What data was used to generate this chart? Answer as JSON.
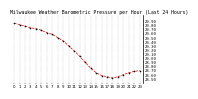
{
  "title": "Milwaukee Weather Barometric Pressure per Hour (Last 24 Hours)",
  "x_hours": [
    0,
    1,
    2,
    3,
    4,
    5,
    6,
    7,
    8,
    9,
    10,
    11,
    12,
    13,
    14,
    15,
    16,
    17,
    18,
    19,
    20,
    21,
    22,
    23
  ],
  "pressure": [
    29.85,
    29.82,
    29.78,
    29.74,
    29.72,
    29.68,
    29.62,
    29.58,
    29.5,
    29.42,
    29.3,
    29.18,
    29.05,
    28.9,
    28.76,
    28.65,
    28.58,
    28.55,
    28.52,
    28.55,
    28.6,
    28.65,
    28.68,
    28.7
  ],
  "line_color": "#cc0000",
  "marker_color": "#111111",
  "bg_color": "#ffffff",
  "grid_color": "#999999",
  "title_fontsize": 3.5,
  "tick_fontsize": 2.8,
  "ylim": [
    28.4,
    30.05
  ],
  "ytick_values": [
    28.5,
    28.6,
    28.7,
    28.8,
    28.9,
    29.0,
    29.1,
    29.2,
    29.3,
    29.4,
    29.5,
    29.6,
    29.7,
    29.8,
    29.9
  ],
  "x_tick_labels": [
    "0",
    "1",
    "2",
    "3",
    "4",
    "5",
    "6",
    "7",
    "8",
    "9",
    "10",
    "11",
    "12",
    "13",
    "14",
    "15",
    "16",
    "17",
    "18",
    "19",
    "20",
    "21",
    "22",
    "23"
  ]
}
